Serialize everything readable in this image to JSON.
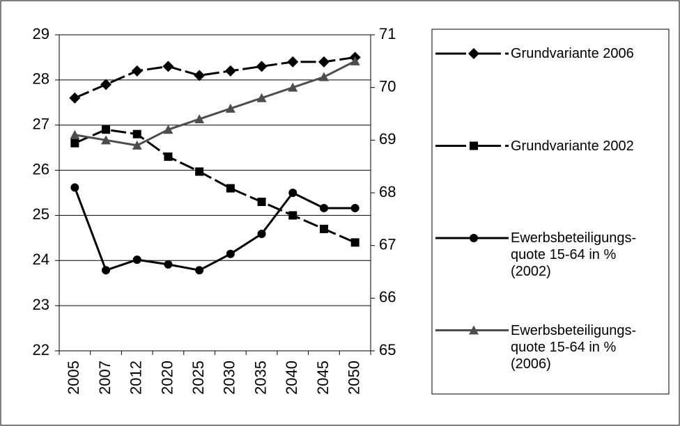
{
  "chart_data": {
    "type": "line",
    "categories": [
      "2005",
      "2007",
      "2012",
      "2020",
      "2025",
      "2030",
      "2035",
      "2040",
      "2045",
      "2050"
    ],
    "ylim": [
      22,
      29
    ],
    "yticks": [
      22,
      23,
      24,
      25,
      26,
      27,
      28,
      29
    ],
    "y2lim": [
      65,
      71
    ],
    "y2ticks": [
      65,
      66,
      67,
      68,
      69,
      70,
      71
    ],
    "grid": true,
    "legend": "right",
    "series": [
      {
        "name": "Grundvariante 2006",
        "color": "#000000",
        "marker": "diamond",
        "dashed": true,
        "values": [
          27.6,
          27.9,
          28.2,
          28.3,
          28.1,
          28.2,
          28.3,
          28.4,
          28.4,
          28.5
        ]
      },
      {
        "name": "Grundvariante 2002",
        "color": "#000000",
        "marker": "square",
        "dashed": true,
        "values": [
          26.6,
          26.9,
          26.8,
          26.3,
          25.97,
          25.6,
          25.3,
          25.0,
          24.7,
          24.4
        ]
      },
      {
        "name": "Ewerbsbeteiligungs-\nquote 15-64 in %\n(2002)",
        "color": "#000000",
        "marker": "circle",
        "dashed": false,
        "axis": "y2",
        "values": [
          68.1,
          66.53,
          66.73,
          66.64,
          66.53,
          66.84,
          67.22,
          68.0,
          67.71,
          67.71
        ]
      },
      {
        "name": "Ewerbsbeteiligungs-\nquote 15-64 in %\n(2006)",
        "color": "#4d4d4d",
        "marker": "triangle",
        "dashed": false,
        "axis": "y2",
        "values": [
          69.1,
          69.0,
          68.9,
          69.2,
          69.4,
          69.6,
          69.8,
          70.0,
          70.2,
          70.5
        ]
      }
    ]
  }
}
